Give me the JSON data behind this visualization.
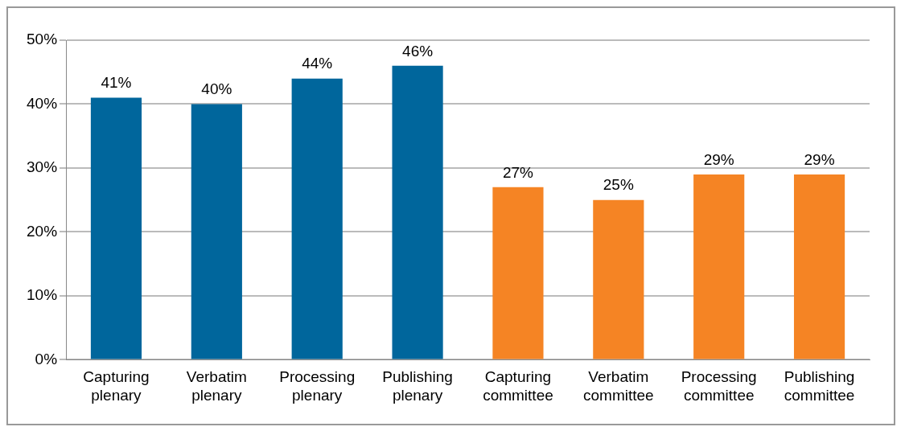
{
  "chart_data": {
    "type": "bar",
    "categories": [
      "Capturing plenary",
      "Verbatim plenary",
      "Processing plenary",
      "Publishing plenary",
      "Capturing committee",
      "Verbatim committee",
      "Processing committee",
      "Publishing committee"
    ],
    "values": [
      41,
      40,
      44,
      46,
      27,
      25,
      29,
      29
    ],
    "value_labels": [
      "41%",
      "40%",
      "44%",
      "46%",
      "27%",
      "25%",
      "29%",
      "29%"
    ],
    "colors": [
      "#00669c",
      "#00669c",
      "#00669c",
      "#00669c",
      "#f58424",
      "#f58424",
      "#f58424",
      "#f58424"
    ],
    "ylim": [
      0,
      50
    ],
    "yticks": [
      {
        "value": 0,
        "label": "0%"
      },
      {
        "value": 10,
        "label": "10%"
      },
      {
        "value": 20,
        "label": "20%"
      },
      {
        "value": 30,
        "label": "30%"
      },
      {
        "value": 40,
        "label": "40%"
      },
      {
        "value": 50,
        "label": "50%"
      }
    ],
    "grid": "y",
    "legend": false
  }
}
